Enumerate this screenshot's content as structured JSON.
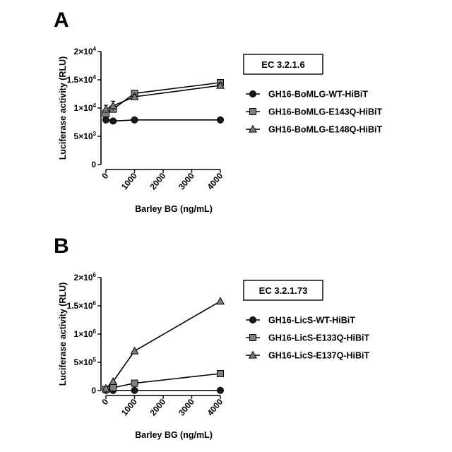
{
  "chart_data": [
    {
      "type": "line",
      "panel_label": "A",
      "annotation": "EC 3.2.1.6",
      "xlabel": "Barley BG (ng/mL)",
      "ylabel": "Luciferase activity (RLU)",
      "xlim": [
        0,
        4000
      ],
      "ylim": [
        0,
        20000
      ],
      "x_ticks": [
        0,
        1000,
        2000,
        3000,
        4000
      ],
      "y_ticks": [
        {
          "value": 0,
          "mantissa": "0",
          "exponent": ""
        },
        {
          "value": 5000,
          "mantissa": "5×10",
          "exponent": "3"
        },
        {
          "value": 10000,
          "mantissa": "1×10",
          "exponent": "4"
        },
        {
          "value": 15000,
          "mantissa": "1.5×10",
          "exponent": "4"
        },
        {
          "value": 20000,
          "mantissa": "2×10",
          "exponent": "4"
        }
      ],
      "grid": false,
      "legend_position": "right",
      "x": [
        0,
        250,
        1000,
        4000
      ],
      "series": [
        {
          "name": "GH16-BoMLG-WT-HiBiT",
          "marker": "circle",
          "color": "#1a1a1a",
          "values": [
            7900,
            7700,
            7900,
            7900
          ]
        },
        {
          "name": "GH16-BoMLG-E143Q-HiBiT",
          "marker": "square",
          "color": "#808080",
          "values": [
            9000,
            9800,
            12600,
            14500
          ],
          "errors": [
            800,
            600,
            400,
            400
          ]
        },
        {
          "name": "GH16-BoMLG-E148Q-HiBiT",
          "marker": "triangle",
          "color": "#808080",
          "values": [
            9800,
            10400,
            12000,
            14000
          ],
          "errors": [
            700,
            800,
            400,
            400
          ]
        }
      ]
    },
    {
      "type": "line",
      "panel_label": "B",
      "annotation": "EC 3.2.1.73",
      "xlabel": "Barley BG (ng/mL)",
      "ylabel": "Luciferase activity (RLU)",
      "xlim": [
        0,
        4000
      ],
      "ylim": [
        0,
        2000000
      ],
      "x_ticks": [
        0,
        1000,
        2000,
        3000,
        4000
      ],
      "y_ticks": [
        {
          "value": 0,
          "mantissa": "0",
          "exponent": ""
        },
        {
          "value": 500000,
          "mantissa": "5×10",
          "exponent": "5"
        },
        {
          "value": 1000000,
          "mantissa": "1×10",
          "exponent": "6"
        },
        {
          "value": 1500000,
          "mantissa": "1.5×10",
          "exponent": "6"
        },
        {
          "value": 2000000,
          "mantissa": "2×10",
          "exponent": "6"
        }
      ],
      "grid": false,
      "legend_position": "right",
      "x": [
        0,
        250,
        1000,
        4000
      ],
      "series": [
        {
          "name": "GH16-LicS-WT-HiBiT",
          "marker": "circle",
          "color": "#1a1a1a",
          "values": [
            3000,
            3000,
            3000,
            3000
          ]
        },
        {
          "name": "GH16-LicS-E133Q-HiBiT",
          "marker": "square",
          "color": "#808080",
          "values": [
            20000,
            50000,
            130000,
            300000
          ]
        },
        {
          "name": "GH16-LicS-E137Q-HiBiT",
          "marker": "triangle",
          "color": "#808080",
          "values": [
            40000,
            160000,
            700000,
            1580000
          ]
        }
      ]
    }
  ]
}
